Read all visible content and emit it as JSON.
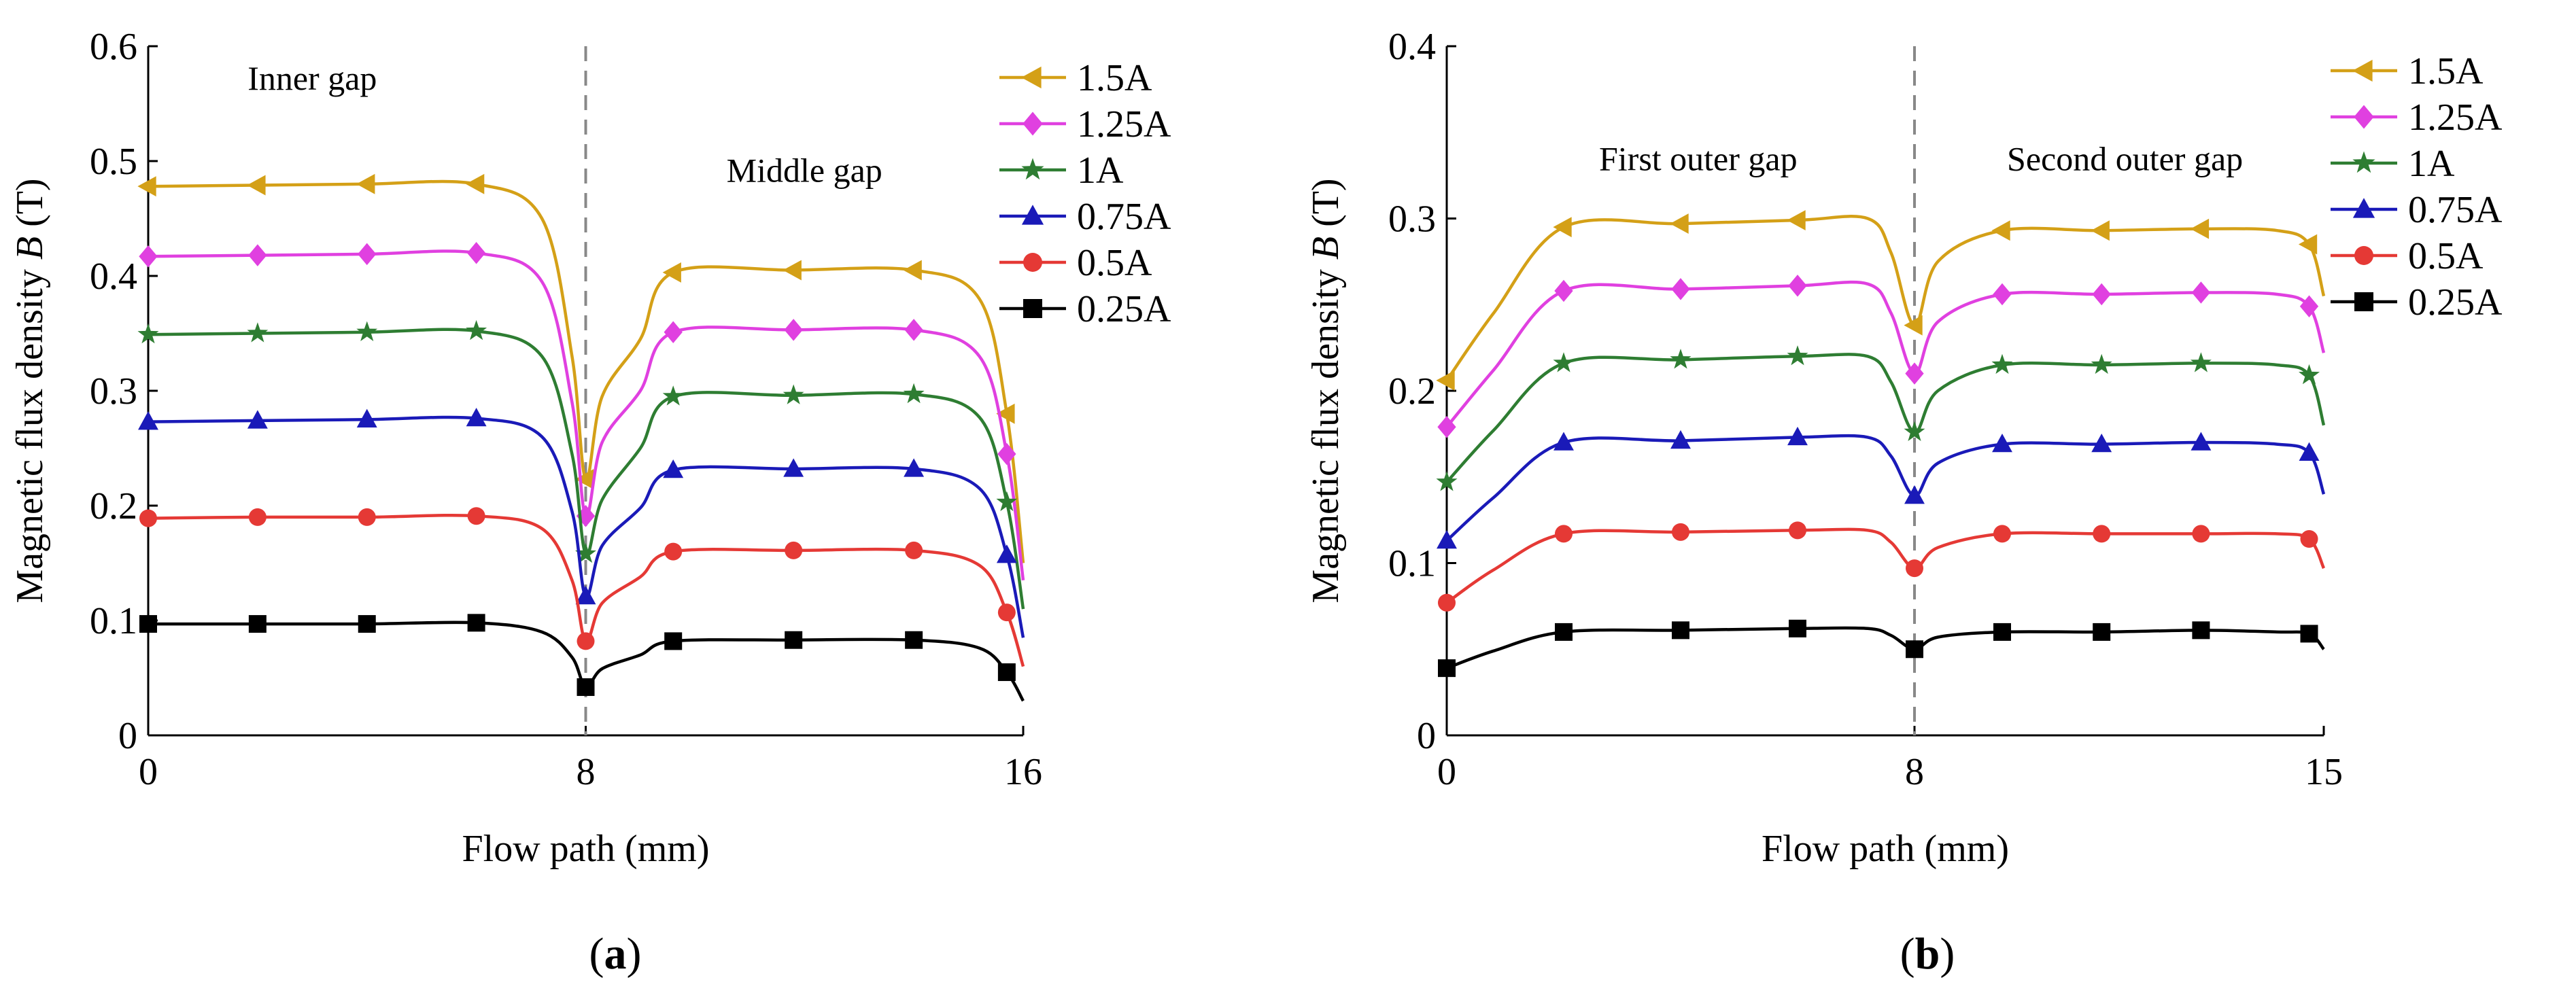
{
  "chart_data": [
    {
      "type": "line",
      "panel_label": "a",
      "xlabel": "Flow path (mm)",
      "ylabel_prefix": "Magnetic flux density ",
      "ylabel_var": "B",
      "ylabel_suffix": " (T)",
      "xlim": [
        0,
        16
      ],
      "ylim": [
        0,
        0.6
      ],
      "xticks": [
        0,
        8,
        16
      ],
      "yticks": [
        0,
        0.1,
        0.2,
        0.3,
        0.4,
        0.5,
        0.6
      ],
      "ytick_labels": [
        "0",
        "0.1",
        "0.2",
        "0.3",
        "0.4",
        "0.5",
        "0.6"
      ],
      "divider_x": 8,
      "annotations": [
        {
          "text": "Inner gap",
          "x": 3.0,
          "y": 0.562
        },
        {
          "text": "Middle gap",
          "x": 12.0,
          "y": 0.482
        }
      ],
      "legend_position": "top-right",
      "series": [
        {
          "name": "1.5A",
          "color": "#D4A017",
          "marker": "triangle-left",
          "x": [
            0,
            2,
            4,
            6,
            7.2,
            7.75,
            8.0,
            8.3,
            9,
            9.6,
            11.8,
            14,
            15.2,
            15.7,
            16
          ],
          "y": [
            0.478,
            0.479,
            0.48,
            0.48,
            0.45,
            0.33,
            0.223,
            0.295,
            0.345,
            0.403,
            0.405,
            0.405,
            0.38,
            0.28,
            0.15
          ],
          "marker_indices": [
            0,
            1,
            2,
            3,
            6,
            9,
            10,
            11,
            13
          ]
        },
        {
          "name": "1.25A",
          "color": "#E040E0",
          "marker": "diamond",
          "x": [
            0,
            2,
            4,
            6,
            7.2,
            7.75,
            8.0,
            8.3,
            9,
            9.6,
            11.8,
            14,
            15.2,
            15.7,
            16
          ],
          "y": [
            0.417,
            0.418,
            0.419,
            0.42,
            0.395,
            0.29,
            0.191,
            0.255,
            0.3,
            0.351,
            0.353,
            0.353,
            0.33,
            0.245,
            0.135
          ],
          "marker_indices": [
            0,
            1,
            2,
            3,
            6,
            9,
            10,
            11,
            13
          ]
        },
        {
          "name": "1A",
          "color": "#2E7D32",
          "marker": "star",
          "x": [
            0,
            2,
            4,
            6,
            7.2,
            7.75,
            8.0,
            8.3,
            9,
            9.6,
            11.8,
            14,
            15.2,
            15.7,
            16
          ],
          "y": [
            0.349,
            0.35,
            0.351,
            0.352,
            0.33,
            0.245,
            0.158,
            0.205,
            0.25,
            0.295,
            0.296,
            0.297,
            0.277,
            0.203,
            0.11
          ],
          "marker_indices": [
            0,
            1,
            2,
            3,
            6,
            9,
            10,
            11,
            13
          ]
        },
        {
          "name": "0.75A",
          "color": "#1A1AB8",
          "marker": "triangle-up",
          "x": [
            0,
            2,
            4,
            6,
            7.2,
            7.75,
            8.0,
            8.3,
            9,
            9.6,
            11.8,
            14,
            15.2,
            15.7,
            16
          ],
          "y": [
            0.273,
            0.274,
            0.275,
            0.276,
            0.26,
            0.195,
            0.121,
            0.165,
            0.198,
            0.231,
            0.232,
            0.232,
            0.215,
            0.157,
            0.085
          ],
          "marker_indices": [
            0,
            1,
            2,
            3,
            6,
            9,
            10,
            11,
            13
          ]
        },
        {
          "name": "0.5A",
          "color": "#E53935",
          "marker": "circle",
          "x": [
            0,
            2,
            4,
            6,
            7.2,
            7.75,
            8.0,
            8.3,
            9,
            9.6,
            11.8,
            14,
            15.2,
            15.7,
            16
          ],
          "y": [
            0.189,
            0.19,
            0.19,
            0.191,
            0.18,
            0.135,
            0.082,
            0.115,
            0.138,
            0.16,
            0.161,
            0.161,
            0.148,
            0.107,
            0.06
          ],
          "marker_indices": [
            0,
            1,
            2,
            3,
            6,
            9,
            10,
            11,
            13
          ]
        },
        {
          "name": "0.25A",
          "color": "#000000",
          "marker": "square",
          "x": [
            0,
            2,
            4,
            6,
            7.2,
            7.75,
            8.0,
            8.3,
            9,
            9.6,
            11.8,
            14,
            15.2,
            15.7,
            16
          ],
          "y": [
            0.097,
            0.097,
            0.097,
            0.098,
            0.09,
            0.068,
            0.042,
            0.058,
            0.07,
            0.082,
            0.083,
            0.083,
            0.076,
            0.055,
            0.03
          ],
          "marker_indices": [
            0,
            1,
            2,
            3,
            6,
            9,
            10,
            11,
            13
          ]
        }
      ]
    },
    {
      "type": "line",
      "panel_label": "b",
      "xlabel": "Flow path (mm)",
      "ylabel_prefix": "Magnetic flux density ",
      "ylabel_var": "B",
      "ylabel_suffix": " (T)",
      "xlim": [
        0,
        15
      ],
      "ylim": [
        0,
        0.4
      ],
      "xticks": [
        0,
        8,
        15
      ],
      "yticks": [
        0,
        0.1,
        0.2,
        0.3,
        0.4
      ],
      "ytick_labels": [
        "0",
        "0.1",
        "0.2",
        "0.3",
        "0.4"
      ],
      "divider_x": 8,
      "annotations": [
        {
          "text": "First outer gap",
          "x": 4.3,
          "y": 0.328
        },
        {
          "text": "Second outer gap",
          "x": 11.6,
          "y": 0.328
        }
      ],
      "legend_position": "top-right",
      "series": [
        {
          "name": "1.5A",
          "color": "#D4A017",
          "marker": "triangle-left",
          "x": [
            0,
            0.8,
            2,
            4,
            6,
            7.2,
            7.6,
            8.0,
            8.4,
            9.5,
            11.2,
            12.9,
            14.2,
            14.75,
            15
          ],
          "y": [
            0.206,
            0.245,
            0.295,
            0.297,
            0.299,
            0.3,
            0.28,
            0.238,
            0.275,
            0.293,
            0.293,
            0.294,
            0.293,
            0.285,
            0.255
          ],
          "marker_indices": [
            0,
            2,
            3,
            4,
            7,
            9,
            10,
            11,
            13
          ]
        },
        {
          "name": "1.25A",
          "color": "#E040E0",
          "marker": "diamond",
          "x": [
            0,
            0.8,
            2,
            4,
            6,
            7.2,
            7.6,
            8.0,
            8.4,
            9.5,
            11.2,
            12.9,
            14.2,
            14.75,
            15
          ],
          "y": [
            0.179,
            0.212,
            0.258,
            0.259,
            0.261,
            0.262,
            0.245,
            0.21,
            0.24,
            0.256,
            0.256,
            0.257,
            0.256,
            0.249,
            0.222
          ],
          "marker_indices": [
            0,
            2,
            3,
            4,
            7,
            9,
            10,
            11,
            13
          ]
        },
        {
          "name": "1A",
          "color": "#2E7D32",
          "marker": "star",
          "x": [
            0,
            0.8,
            2,
            4,
            6,
            7.2,
            7.6,
            8.0,
            8.4,
            9.5,
            11.2,
            12.9,
            14.2,
            14.75,
            15
          ],
          "y": [
            0.147,
            0.177,
            0.216,
            0.218,
            0.22,
            0.22,
            0.205,
            0.176,
            0.2,
            0.215,
            0.215,
            0.216,
            0.215,
            0.209,
            0.18
          ],
          "marker_indices": [
            0,
            2,
            3,
            4,
            7,
            9,
            10,
            11,
            13
          ]
        },
        {
          "name": "0.75A",
          "color": "#1A1AB8",
          "marker": "triangle-up",
          "x": [
            0,
            0.8,
            2,
            4,
            6,
            7.2,
            7.6,
            8.0,
            8.4,
            9.5,
            11.2,
            12.9,
            14.2,
            14.75,
            15
          ],
          "y": [
            0.113,
            0.138,
            0.17,
            0.171,
            0.173,
            0.173,
            0.162,
            0.139,
            0.158,
            0.169,
            0.169,
            0.17,
            0.169,
            0.164,
            0.14
          ],
          "marker_indices": [
            0,
            2,
            3,
            4,
            7,
            9,
            10,
            11,
            13
          ]
        },
        {
          "name": "0.5A",
          "color": "#E53935",
          "marker": "circle",
          "x": [
            0,
            0.8,
            2,
            4,
            6,
            7.2,
            7.6,
            8.0,
            8.4,
            9.5,
            11.2,
            12.9,
            14.2,
            14.75,
            15
          ],
          "y": [
            0.077,
            0.096,
            0.117,
            0.118,
            0.119,
            0.119,
            0.112,
            0.097,
            0.109,
            0.117,
            0.117,
            0.117,
            0.117,
            0.114,
            0.097
          ],
          "marker_indices": [
            0,
            2,
            3,
            4,
            7,
            9,
            10,
            11,
            13
          ]
        },
        {
          "name": "0.25A",
          "color": "#000000",
          "marker": "square",
          "x": [
            0,
            0.8,
            2,
            4,
            6,
            7.2,
            7.6,
            8.0,
            8.4,
            9.5,
            11.2,
            12.9,
            14.2,
            14.75,
            15
          ],
          "y": [
            0.039,
            0.049,
            0.06,
            0.061,
            0.062,
            0.062,
            0.058,
            0.05,
            0.057,
            0.06,
            0.06,
            0.061,
            0.06,
            0.059,
            0.05
          ],
          "marker_indices": [
            0,
            2,
            3,
            4,
            7,
            9,
            10,
            11,
            13
          ]
        }
      ]
    }
  ]
}
